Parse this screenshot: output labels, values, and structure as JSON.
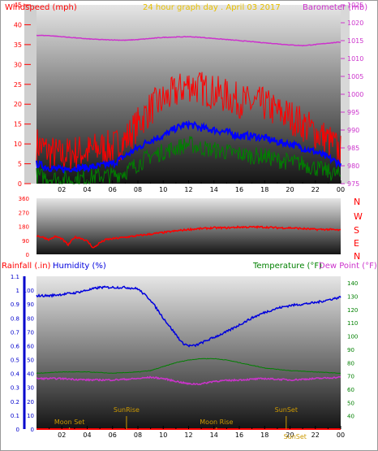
{
  "header": {
    "left_title": "Windspeed (mph)",
    "center_title": "24 hour graph day . April 03 2017",
    "right_title": "Barometer (mb)"
  },
  "colors": {
    "wind_gust": "#ff0000",
    "wind_avg": "#0000ff",
    "wind_low": "#008000",
    "barometer": "#cc33cc",
    "direction": "#ff0000",
    "humidity": "#0000dd",
    "temperature": "#008000",
    "dewpoint": "#cc33cc",
    "rain": "#ff0000",
    "moon": "#cc9900",
    "sun": "#cc9900"
  },
  "chart_data": [
    {
      "type": "line",
      "panel": "wind",
      "x_ticks": [
        "02",
        "04",
        "06",
        "08",
        "10",
        "12",
        "14",
        "16",
        "18",
        "20",
        "22",
        "00"
      ],
      "y_left_ticks": [
        "0",
        "5",
        "10",
        "15",
        "20",
        "25",
        "30",
        "35",
        "40",
        "45"
      ],
      "y_left_range": [
        0,
        45
      ],
      "y_right_ticks": [
        "975",
        "980",
        "985",
        "990",
        "995",
        "1000",
        "1005",
        "1010",
        "1015",
        "1020",
        "1025"
      ],
      "y_right_range": [
        975,
        1025
      ],
      "series": [
        {
          "name": "",
          "role": "gust",
          "axis": "left",
          "x": [
            0,
            1,
            2,
            3,
            4,
            5,
            6,
            7,
            8,
            9,
            10,
            11,
            12,
            13,
            14,
            15,
            16,
            17,
            18,
            19,
            20,
            21,
            22,
            23,
            24
          ],
          "values": [
            10,
            8,
            7,
            8,
            8,
            9,
            9,
            11,
            15,
            19,
            21,
            23,
            25,
            24,
            23,
            22,
            21,
            20,
            20,
            18,
            17,
            15,
            13,
            11,
            8
          ]
        },
        {
          "name": "",
          "role": "average",
          "axis": "left",
          "x": [
            0,
            1,
            2,
            3,
            4,
            5,
            6,
            7,
            8,
            9,
            10,
            11,
            12,
            13,
            14,
            15,
            16,
            17,
            18,
            19,
            20,
            21,
            22,
            23,
            24
          ],
          "values": [
            5,
            4,
            3.5,
            4,
            4,
            4.5,
            5,
            7,
            9,
            11,
            12,
            14,
            15,
            14,
            13.5,
            13,
            12,
            12,
            11.5,
            10.5,
            10,
            9,
            8,
            6.5,
            5
          ]
        },
        {
          "name": "",
          "role": "low",
          "axis": "left",
          "x": [
            0,
            1,
            2,
            3,
            4,
            5,
            6,
            7,
            8,
            9,
            10,
            11,
            12,
            13,
            14,
            15,
            16,
            17,
            18,
            19,
            20,
            21,
            22,
            23,
            24
          ],
          "values": [
            2,
            1.5,
            1,
            1,
            1.5,
            2,
            2,
            3,
            5,
            7,
            8,
            9,
            10,
            9,
            8.5,
            8,
            7.5,
            7,
            7,
            6,
            5.5,
            5,
            4,
            3,
            2
          ]
        },
        {
          "name": "",
          "role": "barometer",
          "axis": "right",
          "x": [
            0,
            1,
            2,
            3,
            4,
            5,
            6,
            7,
            8,
            9,
            10,
            11,
            12,
            13,
            14,
            15,
            16,
            17,
            18,
            19,
            20,
            21,
            22,
            23,
            24
          ],
          "values": [
            1016.5,
            1016.4,
            1016.1,
            1015.8,
            1015.5,
            1015.3,
            1015.2,
            1015.1,
            1015.3,
            1015.6,
            1015.9,
            1016.0,
            1016.1,
            1015.9,
            1015.6,
            1015.3,
            1015.0,
            1014.7,
            1014.4,
            1014.1,
            1013.8,
            1013.6,
            1013.9,
            1014.3,
            1014.6
          ]
        }
      ]
    },
    {
      "type": "line",
      "panel": "direction",
      "y_left_ticks": [
        "0",
        "90",
        "180",
        "270",
        "360"
      ],
      "y_range": [
        0,
        360
      ],
      "y_right_labels": [
        "N",
        "W",
        "S",
        "E",
        "N"
      ],
      "series": [
        {
          "name": "",
          "role": "direction",
          "x": [
            0,
            0.5,
            1,
            1.5,
            2,
            2.5,
            3,
            3.5,
            4,
            4.5,
            5,
            5.5,
            6,
            7,
            8,
            9,
            10,
            11,
            12,
            13,
            14,
            15,
            16,
            17,
            18,
            19,
            20,
            21,
            22,
            23,
            24
          ],
          "values": [
            120,
            110,
            95,
            115,
            100,
            60,
            110,
            105,
            85,
            40,
            75,
            95,
            100,
            110,
            120,
            130,
            140,
            150,
            160,
            165,
            170,
            170,
            175,
            175,
            175,
            170,
            170,
            165,
            160,
            160,
            155
          ]
        }
      ]
    },
    {
      "type": "line",
      "panel": "climate",
      "x_ticks": [
        "02",
        "04",
        "06",
        "08",
        "10",
        "12",
        "14",
        "16",
        "18",
        "20",
        "22",
        "00"
      ],
      "rain_ticks": [
        "0",
        "0.1",
        "0.2",
        "0.3",
        "0.4",
        "0.5",
        "0.6",
        "0.7",
        "0.8",
        "0.9",
        "1",
        "1.1"
      ],
      "rain_range": [
        0,
        1.1
      ],
      "humidity_ticks": [
        "0",
        "10",
        "20",
        "30",
        "40",
        "50",
        "60",
        "70",
        "80",
        "90",
        "100"
      ],
      "humidity_range": [
        0,
        110
      ],
      "temperature_ticks": [
        "40",
        "50",
        "60",
        "70",
        "80",
        "90",
        "100",
        "110",
        "120",
        "130",
        "140"
      ],
      "temperature_range": [
        30,
        145
      ],
      "left_titles": {
        "rain": "Rainfall (.in)",
        "humidity": "Humidity (%)"
      },
      "right_titles": {
        "temperature": "Temperature (°F)",
        "dewpoint": "Dew Point (°F)"
      },
      "series": [
        {
          "name": "",
          "role": "humidity",
          "axis": "humidity",
          "x": [
            0,
            1,
            2,
            3,
            4,
            5,
            6,
            7,
            8,
            9,
            10,
            11,
            11.5,
            12,
            12.5,
            13,
            14,
            15,
            16,
            17,
            18,
            19,
            20,
            21,
            22,
            23,
            24
          ],
          "values": [
            96,
            96,
            97,
            98,
            100,
            102,
            102,
            102,
            101,
            93,
            80,
            68,
            62,
            60,
            60,
            62,
            66,
            70,
            75,
            80,
            84,
            87,
            89,
            90,
            91,
            93,
            95
          ]
        },
        {
          "name": "",
          "role": "temperature",
          "axis": "temperature",
          "x": [
            0,
            2,
            4,
            6,
            8,
            9,
            10,
            11,
            12,
            13,
            14,
            15,
            16,
            17,
            18,
            19,
            20,
            22,
            24
          ],
          "values": [
            72,
            73,
            73,
            72,
            73,
            74,
            77,
            80,
            82,
            83,
            83,
            82,
            80,
            78,
            76,
            75,
            74,
            73,
            72
          ]
        },
        {
          "name": "",
          "role": "dewpoint",
          "axis": "temperature",
          "x": [
            0,
            2,
            4,
            5,
            6,
            8,
            9,
            10,
            11,
            12,
            13,
            14,
            16,
            18,
            20,
            22,
            24
          ],
          "values": [
            68,
            68,
            67,
            67,
            67,
            68,
            69,
            68,
            66,
            64,
            64,
            66,
            67,
            68,
            67,
            68,
            69
          ]
        },
        {
          "name": "",
          "role": "rain",
          "axis": "rain",
          "x": [
            0,
            24
          ],
          "values": [
            0,
            0
          ]
        }
      ],
      "events": [
        {
          "label": "Moon Set",
          "x": 2.6,
          "row": "low"
        },
        {
          "label": "SunRise",
          "x": 7.1,
          "row": "high"
        },
        {
          "label": "Moon Rise",
          "x": 14.2,
          "row": "low"
        },
        {
          "label": "SunSet",
          "x": 19.7,
          "row": "high"
        },
        {
          "label": "SunSet",
          "x": 20.4,
          "row": "bottom"
        }
      ]
    }
  ]
}
